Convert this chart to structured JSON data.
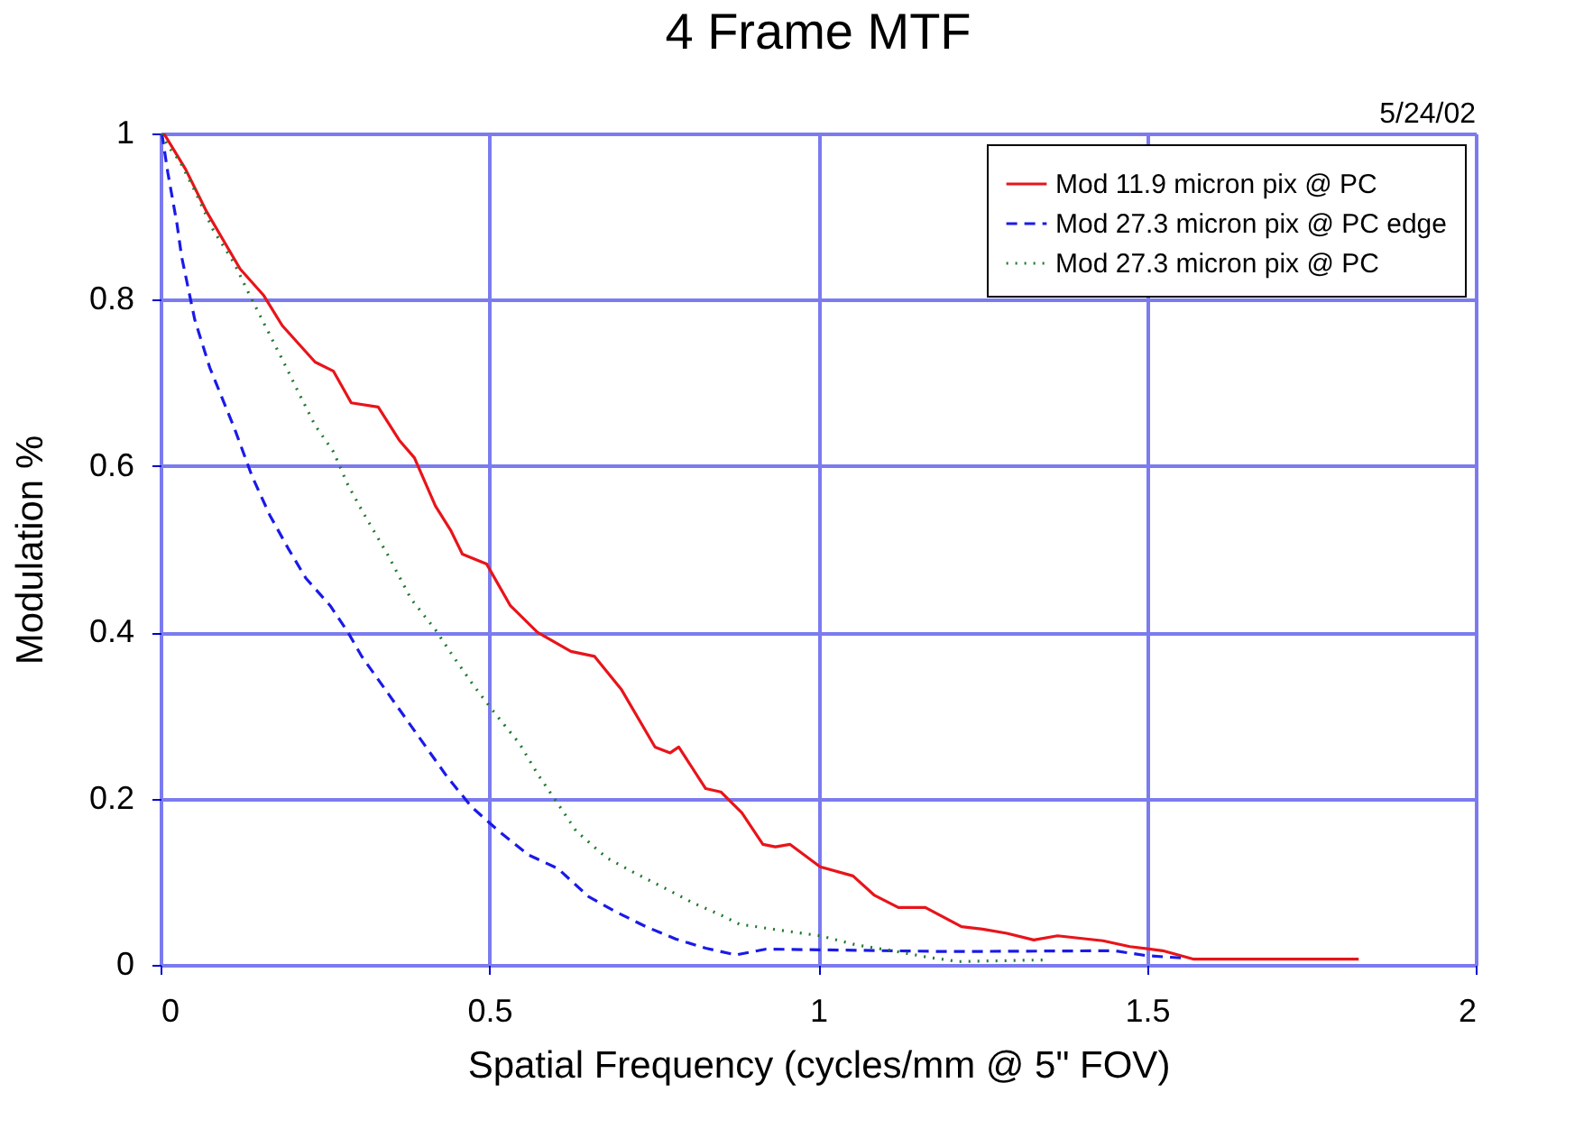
{
  "chart_data": {
    "type": "line",
    "title": "4 Frame MTF",
    "xlabel": "Spatial Frequency (cycles/mm @ 5\" FOV)",
    "ylabel": "Modulation %",
    "annotations": [
      "5/24/02"
    ],
    "xlim": [
      0,
      2
    ],
    "xticks": [
      0,
      0.5,
      1,
      1.5,
      2
    ],
    "ylim": [
      0,
      1
    ],
    "yticks": [
      0,
      0.2,
      0.4,
      0.6,
      0.8,
      1
    ],
    "grid": true,
    "legend": "top right",
    "series": [
      {
        "name": "Mod 11.9 micron pix @ PC",
        "color": "#e8141a",
        "line_style": "solid",
        "x": [
          0.005,
          0.038,
          0.07,
          0.121,
          0.157,
          0.185,
          0.235,
          0.263,
          0.29,
          0.331,
          0.363,
          0.386,
          0.418,
          0.441,
          0.459,
          0.496,
          0.532,
          0.573,
          0.624,
          0.66,
          0.701,
          0.752,
          0.775,
          0.788,
          0.829,
          0.852,
          0.884,
          0.916,
          0.935,
          0.957,
          1.003,
          1.053,
          1.085,
          1.122,
          1.163,
          1.218,
          1.25,
          1.287,
          1.328,
          1.364,
          1.433,
          1.474,
          1.524,
          1.57,
          1.822
        ],
        "values": [
          1.0,
          0.957,
          0.906,
          0.837,
          0.805,
          0.769,
          0.725,
          0.714,
          0.676,
          0.671,
          0.631,
          0.61,
          0.552,
          0.523,
          0.494,
          0.482,
          0.432,
          0.4,
          0.377,
          0.371,
          0.331,
          0.262,
          0.255,
          0.262,
          0.212,
          0.208,
          0.183,
          0.145,
          0.142,
          0.145,
          0.118,
          0.107,
          0.084,
          0.069,
          0.069,
          0.046,
          0.043,
          0.038,
          0.03,
          0.035,
          0.029,
          0.022,
          0.017,
          0.007,
          0.007
        ]
      },
      {
        "name": "Mod 27.3 micron pix @ PC edge",
        "color": "#1a1ae8",
        "line_style": "dashed",
        "x": [
          0.002,
          0.011,
          0.025,
          0.032,
          0.052,
          0.075,
          0.112,
          0.139,
          0.166,
          0.194,
          0.221,
          0.258,
          0.285,
          0.306,
          0.436,
          0.473,
          0.514,
          0.56,
          0.604,
          0.651,
          0.692,
          0.738,
          0.784,
          0.829,
          0.875,
          0.921,
          1.2,
          1.45,
          1.5,
          1.56
        ],
        "values": [
          1.0,
          0.953,
          0.891,
          0.852,
          0.776,
          0.718,
          0.646,
          0.588,
          0.541,
          0.501,
          0.465,
          0.432,
          0.4,
          0.371,
          0.226,
          0.19,
          0.161,
          0.132,
          0.116,
          0.082,
          0.064,
          0.046,
          0.031,
          0.02,
          0.012,
          0.019,
          0.016,
          0.017,
          0.011,
          0.008
        ]
      },
      {
        "name": "Mod 27.3 micron pix @ PC",
        "color": "#1f7a2a",
        "line_style": "dotted",
        "x": [
          0.002,
          0.011,
          0.029,
          0.052,
          0.08,
          0.112,
          0.134,
          0.157,
          0.189,
          0.212,
          0.235,
          0.263,
          0.285,
          0.308,
          0.345,
          0.381,
          0.418,
          0.445,
          0.477,
          0.509,
          0.546,
          0.573,
          0.604,
          0.632,
          0.678,
          0.72,
          0.765,
          0.811,
          0.852,
          0.88,
          0.939,
          1.003,
          1.058,
          1.113,
          1.168,
          1.214,
          1.346
        ],
        "values": [
          1.0,
          0.985,
          0.967,
          0.931,
          0.884,
          0.844,
          0.808,
          0.772,
          0.722,
          0.685,
          0.649,
          0.617,
          0.577,
          0.544,
          0.494,
          0.44,
          0.403,
          0.371,
          0.335,
          0.302,
          0.266,
          0.23,
          0.194,
          0.161,
          0.129,
          0.111,
          0.093,
          0.074,
          0.06,
          0.049,
          0.042,
          0.035,
          0.024,
          0.017,
          0.009,
          0.004,
          0.006
        ]
      }
    ]
  }
}
